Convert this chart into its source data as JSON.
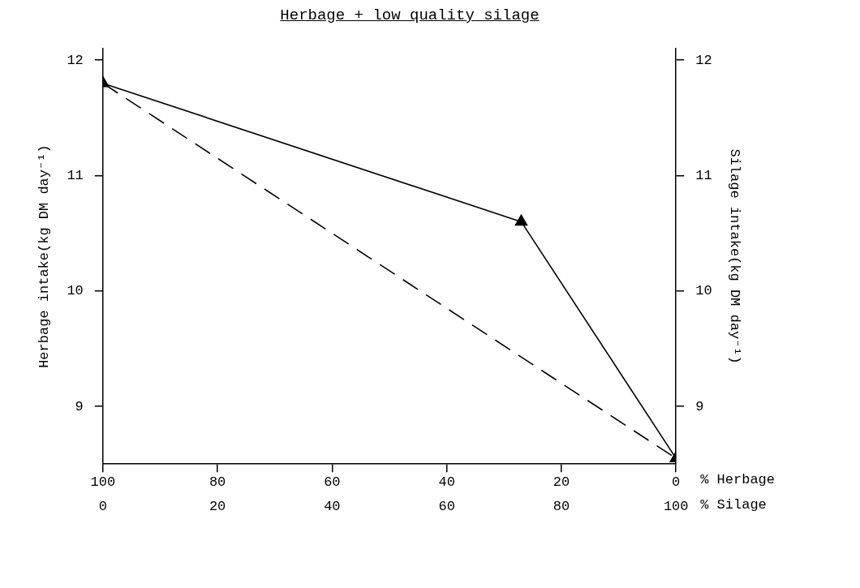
{
  "chart_data": {
    "type": "line",
    "title": "Herbage + low quality silage",
    "xlabel": "% Herbage",
    "x2label": "% Silage",
    "ylabel": "Herbage intake(kg DM day⁻¹)",
    "y2label": "Silage intake(kg DM day⁻¹)",
    "xlim": [
      100,
      0
    ],
    "xticks": [
      100,
      80,
      60,
      40,
      20,
      0
    ],
    "x2lim": [
      0,
      100
    ],
    "x2ticks": [
      0,
      20,
      40,
      60,
      80,
      100
    ],
    "ylim": [
      8.5,
      12.1
    ],
    "yticks": [
      9,
      10,
      11,
      12
    ],
    "y2lim": [
      8.5,
      12.1
    ],
    "y2ticks": [
      9,
      10,
      11,
      12
    ],
    "grid": false,
    "legend": false,
    "series": [
      {
        "color": "#000000",
        "x": [
          100,
          27,
          0
        ],
        "values": [
          11.8,
          10.6,
          8.55
        ],
        "marker": "triangle",
        "line_style": "solid"
      },
      {
        "color": "#000000",
        "x": [
          100,
          0
        ],
        "values": [
          11.8,
          8.55
        ],
        "marker": "none",
        "line_style": "dashed"
      }
    ]
  }
}
